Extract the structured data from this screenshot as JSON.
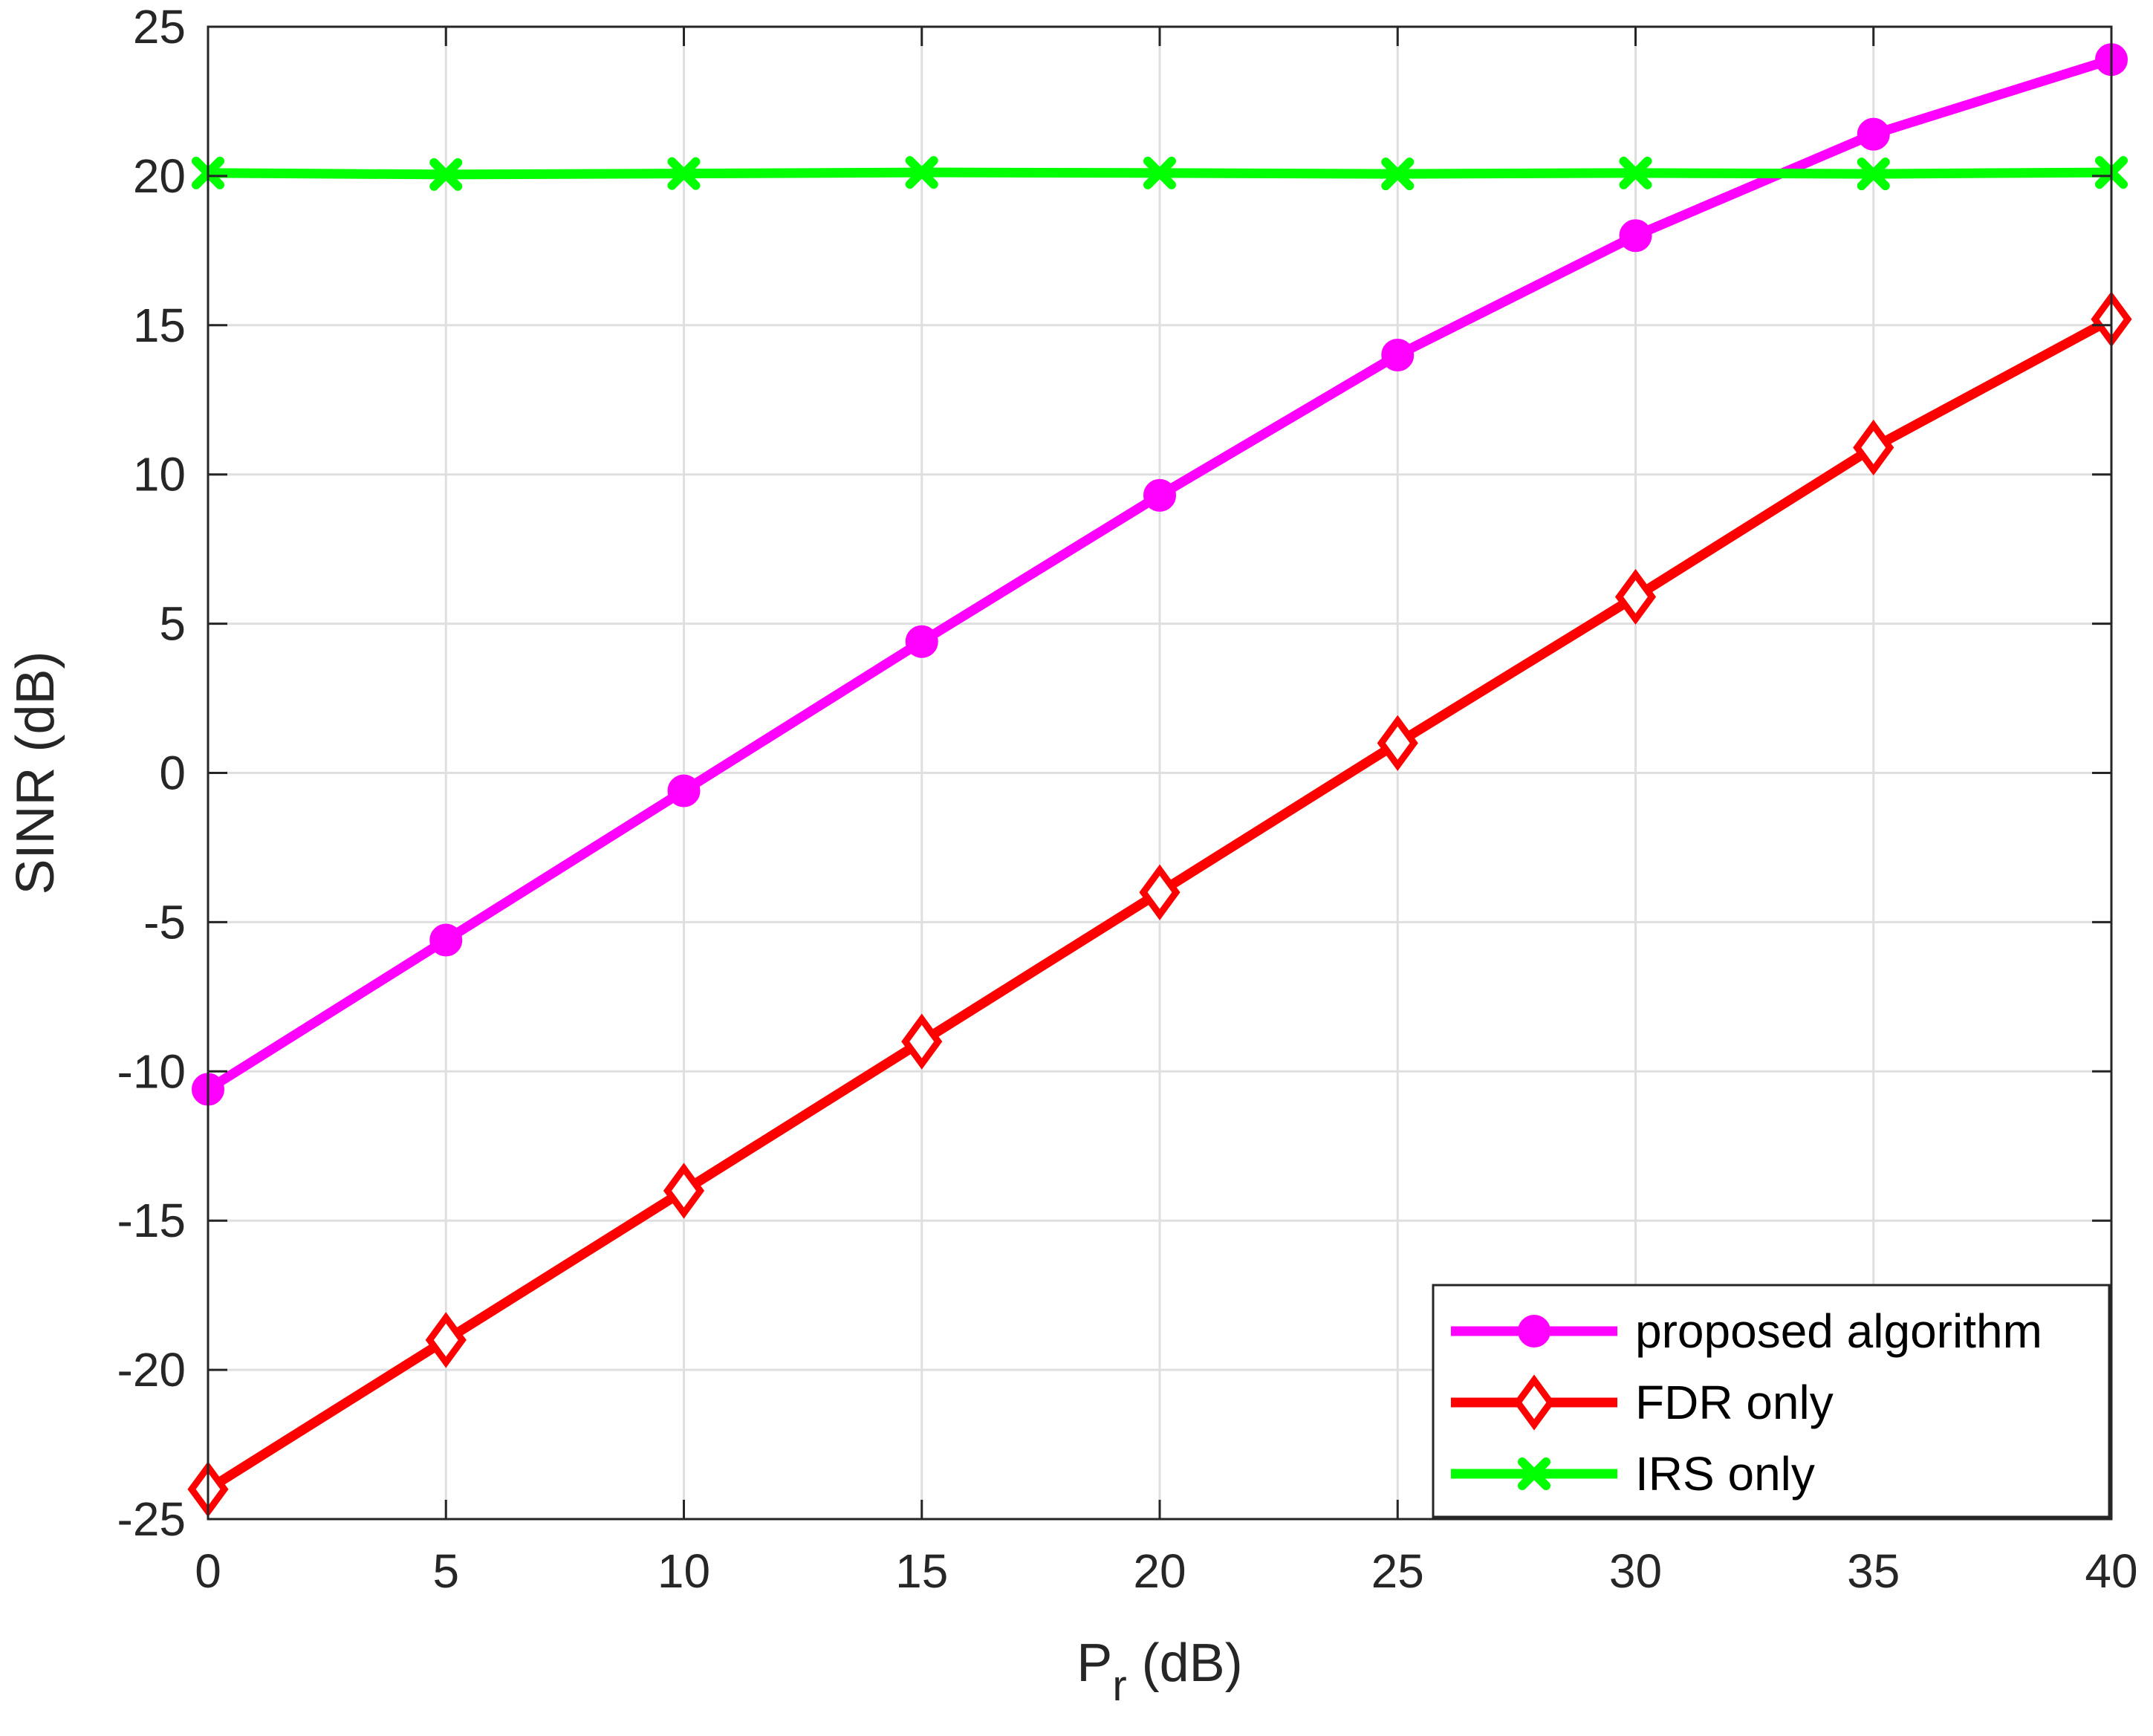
{
  "chart_data": {
    "type": "line",
    "xlabel_main": "P",
    "xlabel_sub": "r",
    "xlabel_unit": " (dB)",
    "ylabel": "SINR (dB)",
    "xlim": [
      0,
      40
    ],
    "ylim": [
      -25,
      25
    ],
    "grid": true,
    "legend_position": "bottom-right",
    "x": [
      0,
      5,
      10,
      15,
      20,
      25,
      30,
      35,
      40
    ],
    "x_ticks": [
      "0",
      "5",
      "10",
      "15",
      "20",
      "25",
      "30",
      "35",
      "40"
    ],
    "y_ticks": [
      "-25",
      "-20",
      "-15",
      "-10",
      "-5",
      "0",
      "5",
      "10",
      "15",
      "20",
      "25"
    ],
    "y_tick_values": [
      -25,
      -20,
      -15,
      -10,
      -5,
      0,
      5,
      10,
      15,
      20,
      25
    ],
    "series": [
      {
        "name": "proposed algorithm",
        "color": "#ff00ff",
        "marker": "circle",
        "values": [
          -10.6,
          -5.6,
          -0.6,
          4.4,
          9.3,
          14.0,
          18.0,
          21.4,
          23.9
        ]
      },
      {
        "name": "FDR only",
        "color": "#ff0000",
        "marker": "diamond",
        "values": [
          -24.0,
          -19.0,
          -14.0,
          -9.0,
          -4.0,
          1.0,
          5.9,
          10.9,
          15.2
        ]
      },
      {
        "name": "IRS only",
        "color": "#00ff00",
        "marker": "x",
        "values": [
          20.1,
          20.05,
          20.08,
          20.12,
          20.1,
          20.07,
          20.1,
          20.07,
          20.12
        ]
      }
    ]
  }
}
